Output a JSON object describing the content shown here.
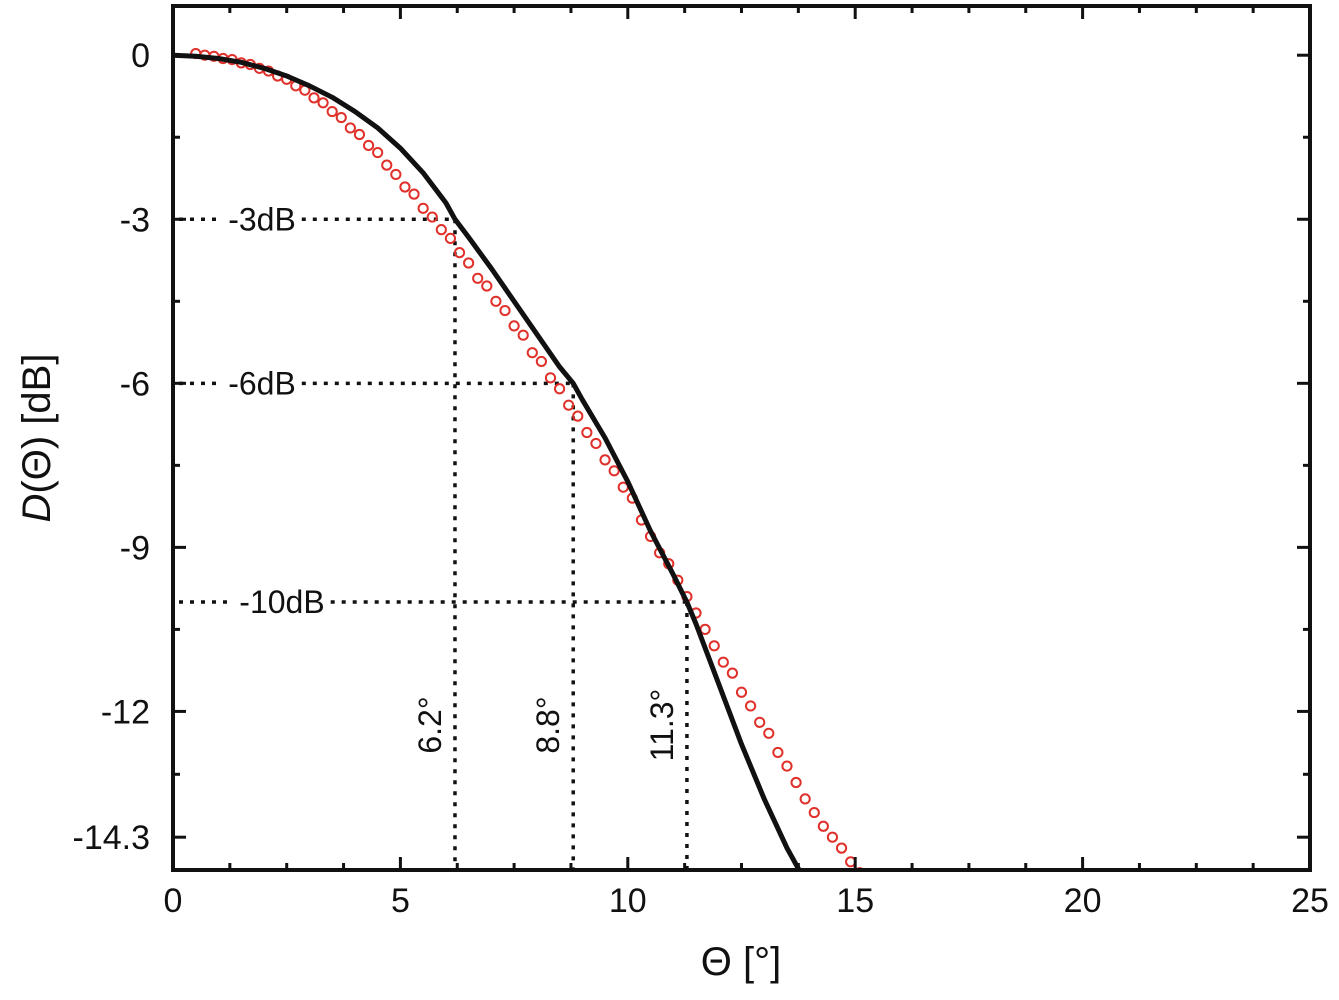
{
  "chart_data": {
    "type": "scatter",
    "xlabel": "Θ [°]",
    "ylabel_prefix": "D",
    "ylabel_suffix": "(Θ) [dB]",
    "xlim": [
      0,
      25
    ],
    "ylim": [
      -14.9,
      0.9
    ],
    "x_ticks": [
      0,
      5,
      10,
      15,
      20,
      25
    ],
    "x_minor_step": 1.25,
    "y_ticks": [
      0,
      -3,
      -6,
      -9,
      -12,
      -14.3
    ],
    "y_tick_labels": [
      "0",
      "-3",
      "-6",
      "-9",
      "-12",
      "-14.3"
    ],
    "y_minor_ticks": [
      -1.5,
      -4.5,
      -7.5,
      -10.5,
      -13.15
    ],
    "grid": false,
    "legend": "none",
    "colors": {
      "measured": "#e0302a",
      "fit": "#111111",
      "guides": "#111111"
    },
    "series": [
      {
        "kind": "scatter",
        "x": [
          0.5,
          0.7,
          0.9,
          1.1,
          1.3,
          1.5,
          1.7,
          1.9,
          2.1,
          2.3,
          2.5,
          2.7,
          2.9,
          3.1,
          3.3,
          3.5,
          3.7,
          3.9,
          4.1,
          4.3,
          4.5,
          4.7,
          4.9,
          5.1,
          5.3,
          5.5,
          5.7,
          5.9,
          6.1,
          6.3,
          6.5,
          6.7,
          6.9,
          7.1,
          7.3,
          7.5,
          7.7,
          7.9,
          8.1,
          8.3,
          8.5,
          8.7,
          8.9,
          9.1,
          9.3,
          9.5,
          9.7,
          9.9,
          10.1,
          10.3,
          10.5,
          10.7,
          10.9,
          11.1,
          11.3,
          11.5,
          11.7,
          11.9,
          12.1,
          12.3,
          12.5,
          12.7,
          12.9,
          13.1,
          13.3,
          13.5,
          13.7,
          13.9,
          14.1,
          14.3,
          14.5,
          14.7,
          14.9,
          15.1
        ],
        "y": [
          0.03,
          0.0,
          -0.02,
          -0.06,
          -0.08,
          -0.14,
          -0.17,
          -0.24,
          -0.29,
          -0.38,
          -0.44,
          -0.56,
          -0.64,
          -0.78,
          -0.87,
          -1.03,
          -1.14,
          -1.33,
          -1.45,
          -1.65,
          -1.78,
          -2.01,
          -2.18,
          -2.41,
          -2.54,
          -2.8,
          -2.96,
          -3.19,
          -3.35,
          -3.61,
          -3.8,
          -4.08,
          -4.22,
          -4.5,
          -4.67,
          -4.95,
          -5.12,
          -5.44,
          -5.6,
          -5.9,
          -6.1,
          -6.4,
          -6.6,
          -6.9,
          -7.1,
          -7.4,
          -7.6,
          -7.9,
          -8.1,
          -8.5,
          -8.8,
          -9.1,
          -9.3,
          -9.6,
          -9.9,
          -10.2,
          -10.5,
          -10.8,
          -11.1,
          -11.3,
          -11.65,
          -11.9,
          -12.2,
          -12.4,
          -12.75,
          -13.0,
          -13.3,
          -13.6,
          -13.85,
          -14.1,
          -14.3,
          -14.5,
          -14.75,
          -14.95
        ]
      },
      {
        "kind": "line",
        "x": [
          0,
          0.5,
          1,
          1.5,
          2,
          2.5,
          3,
          3.5,
          4,
          4.5,
          5,
          5.5,
          6,
          6.2,
          6.5,
          7,
          7.5,
          8,
          8.5,
          8.8,
          9,
          9.5,
          10,
          10.5,
          11,
          11.3,
          11.5,
          12,
          12.5,
          13,
          13.5,
          13.8
        ],
        "y": [
          0,
          -0.02,
          -0.06,
          -0.13,
          -0.24,
          -0.38,
          -0.56,
          -0.77,
          -1.03,
          -1.33,
          -1.7,
          -2.15,
          -2.7,
          -3.0,
          -3.33,
          -3.9,
          -4.5,
          -5.1,
          -5.7,
          -6.0,
          -6.3,
          -7.0,
          -7.8,
          -8.7,
          -9.5,
          -10.0,
          -10.4,
          -11.5,
          -12.6,
          -13.6,
          -14.5,
          -14.95
        ]
      }
    ],
    "annotations": [
      {
        "kind": "hline",
        "y": -3,
        "x_end": 6.2,
        "label": "-3dB"
      },
      {
        "kind": "hline",
        "y": -6,
        "x_end": 8.8,
        "label": "-6dB"
      },
      {
        "kind": "hline",
        "y": -10,
        "x_end": 11.3,
        "label": "-10dB"
      },
      {
        "kind": "vline",
        "x": 6.2,
        "y_start": -3,
        "label": "6.2°"
      },
      {
        "kind": "vline",
        "x": 8.8,
        "y_start": -6,
        "label": "8.8°"
      },
      {
        "kind": "vline",
        "x": 11.3,
        "y_start": -10,
        "label": "11.3°"
      }
    ]
  }
}
